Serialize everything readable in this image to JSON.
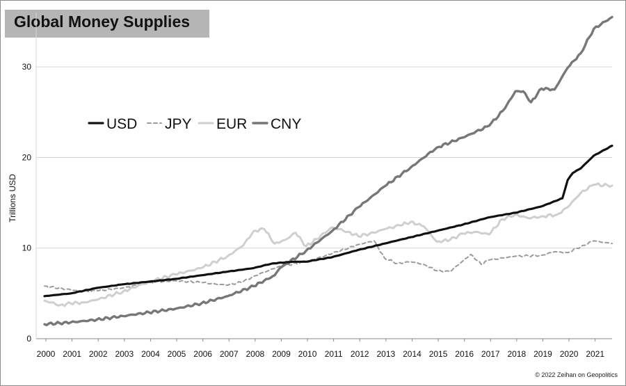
{
  "chart_data": {
    "type": "line",
    "title": "Global Money Supplies",
    "xlabel": "",
    "ylabel": "Trillions USD",
    "ylim": [
      0,
      36
    ],
    "yticks": [
      0,
      10,
      20,
      30
    ],
    "xlim": [
      2000,
      2021.7
    ],
    "categories": [
      "2000",
      "2001",
      "2002",
      "2003",
      "2004",
      "2005",
      "2006",
      "2007",
      "2008",
      "2009",
      "2010",
      "2011",
      "2012",
      "2013",
      "2014",
      "2015",
      "2016",
      "2017",
      "2018",
      "2019",
      "2020",
      "2021"
    ],
    "grid": true,
    "legend_position": "upper-left",
    "credit": "© 2022 Zeihan on Geopolitics",
    "series": [
      {
        "name": "USD",
        "color": "#111111",
        "style": "solid",
        "points": [
          [
            2000,
            4.7
          ],
          [
            2001,
            5.0
          ],
          [
            2002,
            5.6
          ],
          [
            2003,
            6.0
          ],
          [
            2004,
            6.3
          ],
          [
            2005,
            6.6
          ],
          [
            2006,
            7.0
          ],
          [
            2007,
            7.4
          ],
          [
            2008,
            7.8
          ],
          [
            2008.7,
            8.3
          ],
          [
            2009.5,
            8.5
          ],
          [
            2010,
            8.5
          ],
          [
            2011,
            9.0
          ],
          [
            2012,
            9.8
          ],
          [
            2013,
            10.5
          ],
          [
            2014,
            11.2
          ],
          [
            2015,
            11.9
          ],
          [
            2016,
            12.6
          ],
          [
            2017,
            13.4
          ],
          [
            2018,
            13.9
          ],
          [
            2019,
            14.6
          ],
          [
            2019.8,
            15.5
          ],
          [
            2020.0,
            17.5
          ],
          [
            2020.2,
            18.3
          ],
          [
            2020.5,
            18.8
          ],
          [
            2021,
            20.2
          ],
          [
            2021.7,
            21.3
          ]
        ]
      },
      {
        "name": "JPY",
        "color": "#9a9a9a",
        "style": "dashed",
        "points": [
          [
            2000,
            5.8
          ],
          [
            2001,
            5.4
          ],
          [
            2001.5,
            5.2
          ],
          [
            2002,
            5.3
          ],
          [
            2003,
            5.6
          ],
          [
            2004,
            6.2
          ],
          [
            2005,
            6.4
          ],
          [
            2006,
            6.2
          ],
          [
            2007,
            5.9
          ],
          [
            2007.6,
            6.3
          ],
          [
            2008,
            6.9
          ],
          [
            2009,
            8.0
          ],
          [
            2010,
            8.5
          ],
          [
            2011,
            9.4
          ],
          [
            2012,
            10.4
          ],
          [
            2012.6,
            10.8
          ],
          [
            2013,
            8.9
          ],
          [
            2013.5,
            8.3
          ],
          [
            2014,
            8.5
          ],
          [
            2014.5,
            8.2
          ],
          [
            2015,
            7.5
          ],
          [
            2015.5,
            7.4
          ],
          [
            2016,
            8.6
          ],
          [
            2016.3,
            9.3
          ],
          [
            2016.7,
            8.2
          ],
          [
            2017,
            8.7
          ],
          [
            2018,
            9.1
          ],
          [
            2019,
            9.2
          ],
          [
            2019.5,
            9.6
          ],
          [
            2020,
            9.5
          ],
          [
            2020.6,
            10.3
          ],
          [
            2021,
            10.8
          ],
          [
            2021.7,
            10.5
          ]
        ]
      },
      {
        "name": "EUR",
        "color": "#cfcfcf",
        "style": "solid",
        "points": [
          [
            2000,
            4.2
          ],
          [
            2000.6,
            3.7
          ],
          [
            2001,
            3.9
          ],
          [
            2001.5,
            4.0
          ],
          [
            2002,
            4.3
          ],
          [
            2003,
            5.2
          ],
          [
            2004,
            6.3
          ],
          [
            2005,
            7.1
          ],
          [
            2006,
            7.8
          ],
          [
            2007,
            9.1
          ],
          [
            2007.6,
            10.3
          ],
          [
            2008,
            11.9
          ],
          [
            2008.4,
            12.1
          ],
          [
            2008.8,
            10.5
          ],
          [
            2009.2,
            10.9
          ],
          [
            2009.6,
            11.7
          ],
          [
            2010,
            10.2
          ],
          [
            2010.4,
            11.0
          ],
          [
            2011,
            12.3
          ],
          [
            2011.6,
            11.8
          ],
          [
            2012,
            11.3
          ],
          [
            2012.6,
            11.7
          ],
          [
            2013,
            12.1
          ],
          [
            2013.6,
            12.5
          ],
          [
            2014,
            12.9
          ],
          [
            2014.5,
            12.4
          ],
          [
            2015,
            10.7
          ],
          [
            2015.5,
            10.9
          ],
          [
            2016,
            11.6
          ],
          [
            2016.5,
            11.8
          ],
          [
            2017,
            11.5
          ],
          [
            2017.5,
            13.2
          ],
          [
            2018,
            13.7
          ],
          [
            2018.5,
            13.3
          ],
          [
            2019,
            13.5
          ],
          [
            2019.6,
            13.7
          ],
          [
            2020,
            14.5
          ],
          [
            2020.5,
            16.1
          ],
          [
            2021,
            17.0
          ],
          [
            2021.7,
            16.9
          ]
        ]
      },
      {
        "name": "CNY",
        "color": "#777777",
        "style": "solid",
        "points": [
          [
            2000,
            1.6
          ],
          [
            2001,
            1.8
          ],
          [
            2002,
            2.1
          ],
          [
            2003,
            2.5
          ],
          [
            2004,
            2.9
          ],
          [
            2005,
            3.3
          ],
          [
            2006,
            3.9
          ],
          [
            2007,
            4.7
          ],
          [
            2008,
            5.8
          ],
          [
            2008.8,
            7.0
          ],
          [
            2009,
            7.8
          ],
          [
            2010,
            9.7
          ],
          [
            2011,
            11.9
          ],
          [
            2012,
            14.5
          ],
          [
            2013,
            16.8
          ],
          [
            2014,
            18.9
          ],
          [
            2015,
            21.1
          ],
          [
            2016,
            22.2
          ],
          [
            2017,
            23.5
          ],
          [
            2017.6,
            25.4
          ],
          [
            2018,
            27.3
          ],
          [
            2018.3,
            27.3
          ],
          [
            2018.6,
            26.1
          ],
          [
            2019,
            27.6
          ],
          [
            2019.5,
            27.5
          ],
          [
            2020,
            29.9
          ],
          [
            2020.5,
            31.5
          ],
          [
            2021,
            34.2
          ],
          [
            2021.7,
            35.5
          ]
        ]
      }
    ]
  }
}
